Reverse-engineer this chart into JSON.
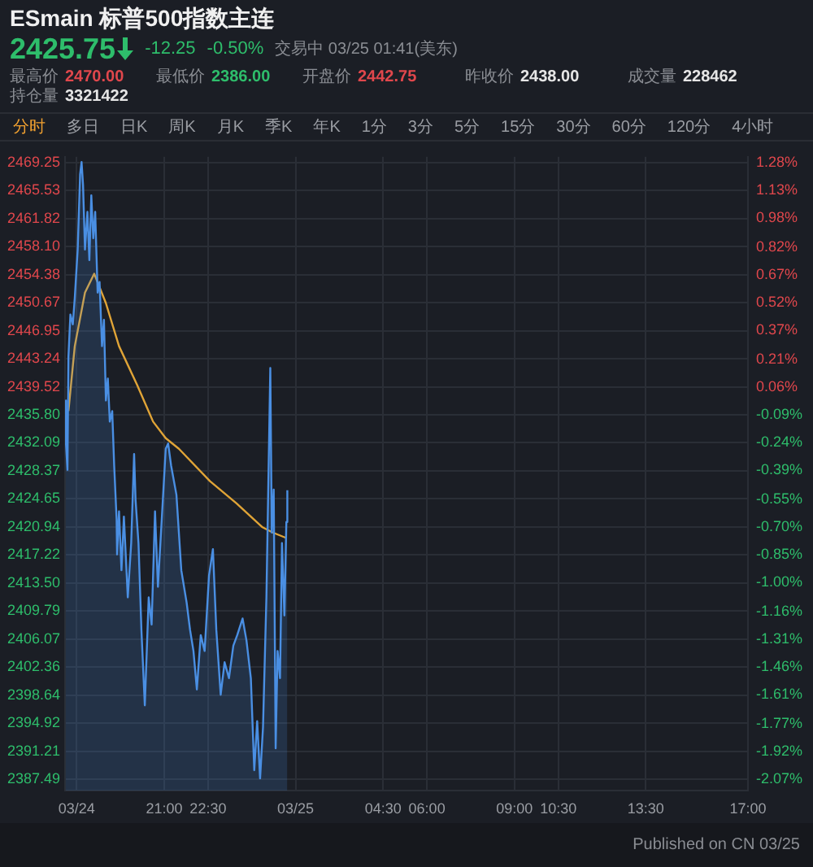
{
  "chart_data": {
    "type": "area",
    "title": "ESmain 标普500指数主连",
    "annotations": [
      "2425.75",
      "-12.25",
      "-0.50%",
      "交易中 03/25 01:41(美东)",
      "最高价",
      "2470.00",
      "最低价",
      "2386.00",
      "开盘价",
      "2442.75",
      "昨收价",
      "2438.00",
      "成交量",
      "228462",
      "持仓量",
      "3321422",
      "分时",
      "多日",
      "日K",
      "周K",
      "月K",
      "季K",
      "年K",
      "1分",
      "3分",
      "5分",
      "15分",
      "30分",
      "60分",
      "120分",
      "4小时",
      "Published on CN 03/25"
    ],
    "series": [
      {
        "type": "area",
        "color": "#4a8fe3",
        "x": [
          "--03-24T17:37",
          "--03-24T17:38",
          "--03-24T17:41",
          "--03-24T17:43",
          "--03-24T17:47",
          "--03-24T17:52",
          "--03-24T17:56",
          "--03-24T18:02",
          "--03-24T18:07",
          "--03-24T18:10",
          "--03-24T18:13",
          "--03-24T18:17",
          "--03-24T18:22",
          "--03-24T18:26",
          "--03-24T18:30",
          "--03-24T18:34",
          "--03-24T18:38",
          "--03-24T18:43",
          "--03-24T18:47",
          "--03-24T18:52",
          "--03-24T18:56",
          "--03-24T19:00",
          "--03-24T19:04",
          "--03-24T19:08",
          "--03-24T19:13",
          "--03-24T19:17",
          "--03-24T19:22",
          "--03-24T19:23",
          "--03-24T19:27",
          "--03-24T19:32",
          "--03-24T19:37",
          "--03-24T19:45",
          "--03-24T19:52",
          "--03-24T19:58",
          "--03-24T20:01",
          "--03-24T20:07",
          "--03-24T20:13",
          "--03-24T20:20",
          "--03-24T20:28",
          "--03-24T20:34",
          "--03-24T20:41",
          "--03-24T20:47",
          "--03-24T21:03",
          "--03-24T21:08",
          "--03-24T21:14",
          "--03-24T21:25",
          "--03-24T21:35",
          "--03-24T21:46",
          "--03-24T21:53",
          "--03-24T22:00",
          "--03-24T22:07",
          "--03-24T22:15",
          "--03-24T22:23",
          "--03-24T22:32",
          "--03-24T22:40",
          "--03-24T22:47",
          "--03-24T22:56",
          "--03-24T23:04",
          "--03-24T23:13",
          "--03-24T23:22",
          "--03-24T23:30",
          "--03-24T23:41",
          "--03-24T23:49",
          "--03-24T23:58",
          "--03-25T00:05",
          "--03-25T00:11",
          "--03-25T00:17",
          "--03-25T00:23",
          "--03-25T00:30",
          "--03-25T00:38",
          "--03-25T00:41",
          "--03-25T00:45",
          "--03-25T00:49",
          "--03-25T00:53",
          "--03-25T00:58",
          "--03-25T01:02",
          "--03-25T01:07",
          "--03-25T01:11",
          "--03-25T01:13"
        ],
        "values": [
          2437.7,
          2431.9,
          2428.5,
          2443.5,
          2449.1,
          2447.8,
          2451.3,
          2457.7,
          2467.7,
          2469.3,
          2466.3,
          2457.7,
          2462.7,
          2456.3,
          2464.9,
          2459.2,
          2462.7,
          2452.0,
          2453.4,
          2444.9,
          2448.4,
          2437.7,
          2440.6,
          2434.9,
          2436.3,
          2429.1,
          2422.0,
          2417.3,
          2423.0,
          2415.2,
          2422.3,
          2411.6,
          2418.8,
          2430.6,
          2424.5,
          2418.8,
          2407.3,
          2397.3,
          2411.6,
          2408.0,
          2423.0,
          2413.0,
          2431.3,
          2432.0,
          2429.1,
          2425.2,
          2415.2,
          2410.9,
          2407.3,
          2404.5,
          2399.4,
          2406.6,
          2404.5,
          2414.5,
          2418.0,
          2407.3,
          2398.7,
          2403.0,
          2400.9,
          2405.2,
          2406.6,
          2408.8,
          2405.9,
          2400.9,
          2388.7,
          2395.2,
          2387.6,
          2394.4,
          2411.6,
          2442.0,
          2420.2,
          2425.9,
          2391.6,
          2404.5,
          2400.9,
          2418.8,
          2409.2,
          2421.6,
          2425.8
        ]
      },
      {
        "type": "line",
        "color": "#e0a437",
        "x": [
          "--03-24T17:43",
          "--03-24T17:56",
          "--03-24T18:17",
          "--03-24T18:36",
          "--03-24T19:00",
          "--03-24T19:27",
          "--03-24T20:04",
          "--03-24T20:37",
          "--03-24T21:03",
          "--03-24T21:30",
          "--03-24T22:34",
          "--03-24T23:28",
          "--03-25T00:22",
          "--03-25T00:43",
          "--03-25T01:10"
        ],
        "values": [
          2436.3,
          2444.9,
          2452.0,
          2454.5,
          2450.6,
          2444.9,
          2439.8,
          2434.9,
          2432.7,
          2431.3,
          2427.0,
          2424.1,
          2420.9,
          2420.2,
          2419.5
        ]
      }
    ],
    "xlim": [
      "--03-24T17:36",
      "--03-25T17:00"
    ],
    "xticks": [
      {
        "value": "--03-24T18:00",
        "label": "03/24"
      },
      {
        "value": "--03-24T21:00",
        "label": "21:00"
      },
      {
        "value": "--03-24T22:30",
        "label": "22:30"
      },
      {
        "value": "--03-25T01:30",
        "label": "03/25"
      },
      {
        "value": "--03-25T04:30",
        "label": "04:30"
      },
      {
        "value": "--03-25T06:00",
        "label": "06:00"
      },
      {
        "value": "--03-25T09:00",
        "label": "09:00"
      },
      {
        "value": "--03-25T10:30",
        "label": "10:30"
      },
      {
        "value": "--03-25T13:30",
        "label": "13:30"
      },
      {
        "value": "--03-25T17:00",
        "label": "17:00"
      }
    ],
    "ylim": [
      2386,
      2470
    ],
    "yticks": [
      {
        "value": 2469.25,
        "label": "2469.25"
      },
      2465.53,
      2461.82,
      {
        "value": 2458.1,
        "label": "2458.10"
      },
      2454.38,
      2450.67,
      2446.95,
      2443.24,
      2439.52,
      {
        "value": 2435.8,
        "label": "2435.80"
      },
      2432.09,
      2428.37,
      2424.65,
      2420.94,
      2417.22,
      {
        "value": 2413.5,
        "label": "2413.50"
      },
      2409.79,
      2406.07,
      2402.36,
      2398.64,
      2394.92,
      2391.21,
      2387.49
    ],
    "y2lim": [
      -2.133,
      1.313
    ],
    "y2ticks": [
      {
        "value": 1.28,
        "label": "1.28%"
      },
      {
        "value": 1.13,
        "label": "1.13%"
      },
      {
        "value": 0.98,
        "label": "0.98%"
      },
      {
        "value": 0.82,
        "label": "0.82%"
      },
      {
        "value": 0.67,
        "label": "0.67%"
      },
      {
        "value": 0.52,
        "label": "0.52%"
      },
      {
        "value": 0.37,
        "label": "0.37%"
      },
      {
        "value": 0.21,
        "label": "0.21%"
      },
      {
        "value": 0.06,
        "label": "0.06%"
      },
      {
        "value": -0.09,
        "label": "-0.09%"
      },
      {
        "value": -0.24,
        "label": "-0.24%"
      },
      {
        "value": -0.39,
        "label": "-0.39%"
      },
      {
        "value": -0.55,
        "label": "-0.55%"
      },
      {
        "value": -0.7,
        "label": "-0.70%"
      },
      {
        "value": -0.85,
        "label": "-0.85%"
      },
      {
        "value": -1.0,
        "label": "-1.00%"
      },
      {
        "value": -1.16,
        "label": "-1.16%"
      },
      {
        "value": -1.31,
        "label": "-1.31%"
      },
      {
        "value": -1.46,
        "label": "-1.46%"
      },
      {
        "value": -1.61,
        "label": "-1.61%"
      },
      {
        "value": -1.77,
        "label": "-1.77%"
      },
      {
        "value": -1.92,
        "label": "-1.92%"
      },
      {
        "value": -2.07,
        "label": "-2.07%"
      }
    ],
    "grid": true,
    "legend": false,
    "marker": "none",
    "line_style": "solid"
  }
}
